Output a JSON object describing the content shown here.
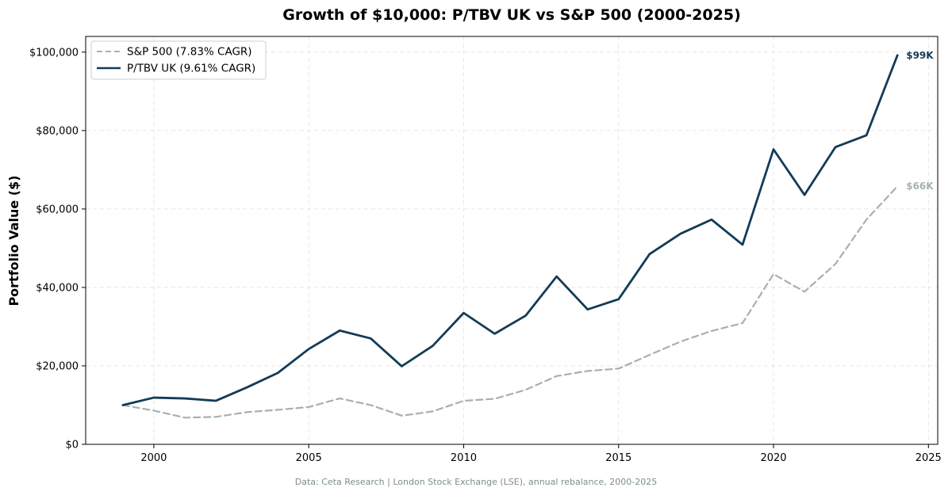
{
  "chart_data": {
    "type": "line",
    "title": "Growth of $10,000: P/TBV UK vs S&P 500 (2000-2025)",
    "xlabel": "",
    "ylabel": "Portfolio Value ($)",
    "xlim": [
      1997.8,
      2025.3
    ],
    "ylim": [
      0,
      104000
    ],
    "x_ticks": [
      2000,
      2005,
      2010,
      2015,
      2020,
      2025
    ],
    "y_ticks": [
      0,
      20000,
      40000,
      60000,
      80000,
      100000
    ],
    "y_tick_labels": [
      "$0",
      "$20,000",
      "$40,000",
      "$60,000",
      "$80,000",
      "$100,000"
    ],
    "grid": true,
    "legend_position": "upper-left",
    "x": [
      1999,
      2000,
      2001,
      2002,
      2003,
      2004,
      2005,
      2006,
      2007,
      2008,
      2009,
      2010,
      2011,
      2012,
      2013,
      2014,
      2015,
      2016,
      2017,
      2018,
      2019,
      2020,
      2021,
      2022,
      2023,
      2024
    ],
    "series": [
      {
        "name": "S&P 500 (7.83% CAGR)",
        "color": "#a5b1b1",
        "style": "dashed",
        "end_label": "$66K",
        "values": [
          10000,
          8600,
          6800,
          7000,
          8200,
          8800,
          9500,
          11700,
          10000,
          7300,
          8400,
          11100,
          11600,
          13900,
          17400,
          18700,
          19300,
          22800,
          26200,
          28900,
          30900,
          43400,
          38900,
          46000,
          57300,
          65800
        ]
      },
      {
        "name": "P/TBV UK (9.61% CAGR)",
        "color": "#133b57",
        "style": "solid",
        "end_label": "$99K",
        "values": [
          10000,
          11900,
          11700,
          11100,
          14500,
          18200,
          24300,
          29000,
          27000,
          19900,
          25100,
          33500,
          28200,
          32800,
          42800,
          34400,
          37000,
          48500,
          53700,
          57300,
          50900,
          75200,
          63600,
          75800,
          78800,
          99200
        ]
      }
    ]
  },
  "source_note": "Data: Ceta Research | London Stock Exchange (LSE), annual rebalance, 2000-2025"
}
